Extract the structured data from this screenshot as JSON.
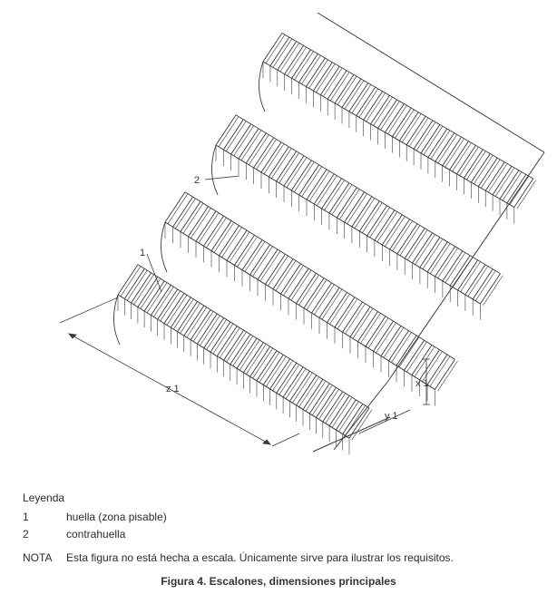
{
  "figure": {
    "callouts": {
      "tread": "1",
      "riser": "2"
    },
    "dimensions": {
      "z": "z 1",
      "x": "x 1",
      "y": "y 1"
    }
  },
  "legend": {
    "title": "Leyenda",
    "items": [
      {
        "num": "1",
        "text": "huella (zona pisable)"
      },
      {
        "num": "2",
        "text": "contrahuella"
      }
    ]
  },
  "note": {
    "label": "NOTA",
    "text": "Esta figura no está hecha a escala. Únicamente sirve para ilustrar los requisitos."
  },
  "caption": "Figura 4. Escalones, dimensiones principales"
}
